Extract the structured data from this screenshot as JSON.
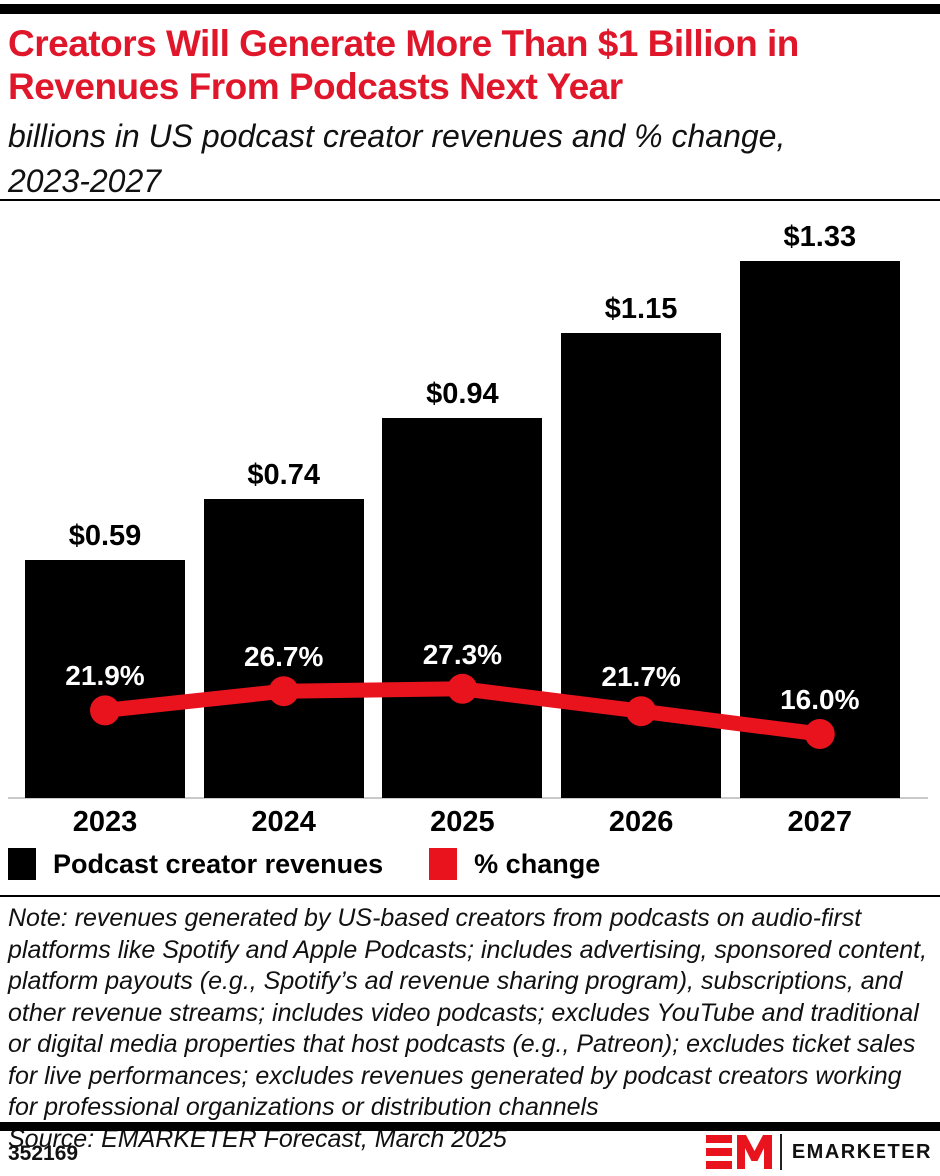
{
  "header": {
    "title": "Creators Will Generate More Than $1 Billion in Revenues From Podcasts Next Year",
    "subtitle": "billions in US podcast creator revenues and % change, 2023-2027"
  },
  "chart_data": {
    "type": "combo-bar-line",
    "categories": [
      "2023",
      "2024",
      "2025",
      "2026",
      "2027"
    ],
    "series": [
      {
        "name": "Podcast creator revenues",
        "type": "bar",
        "unit": "billions of US dollars",
        "values": [
          0.59,
          0.74,
          0.94,
          1.15,
          1.33
        ],
        "labels": [
          "$0.59",
          "$0.74",
          "$0.94",
          "$1.15",
          "$1.33"
        ],
        "color": "#000000"
      },
      {
        "name": "% change",
        "type": "line",
        "unit": "percent",
        "values": [
          21.9,
          26.7,
          27.3,
          21.7,
          16.0
        ],
        "labels": [
          "21.9%",
          "26.7%",
          "27.3%",
          "21.7%",
          "16.0%"
        ],
        "color": "#E8131C"
      }
    ],
    "grid": false,
    "y_axis_visible": false,
    "data_labels": true,
    "legend_position": "bottom"
  },
  "footnote": {
    "note": "Note: revenues generated by US-based creators from podcasts on audio-first platforms like Spotify and Apple Podcasts; includes advertising, sponsored content, platform payouts (e.g., Spotify’s ad revenue sharing program), subscriptions, and other revenue streams; includes video podcasts; excludes YouTube and traditional or digital media properties that host podcasts (e.g., Patreon); excludes ticket sales for live performances; excludes revenues generated by podcast creators working for professional organizations or distribution channels",
    "source": "Source: EMARKETER Forecast, March 2025"
  },
  "footer": {
    "chart_id": "352169",
    "brand": {
      "monogram": "EM",
      "wordmark": "EMARKETER"
    }
  },
  "colors": {
    "title_red": "#E0162B",
    "accent_red": "#E8131C",
    "bar_black": "#000000",
    "axis_gray": "#C9C9C9",
    "text_black": "#111111",
    "background": "#FFFFFF"
  }
}
